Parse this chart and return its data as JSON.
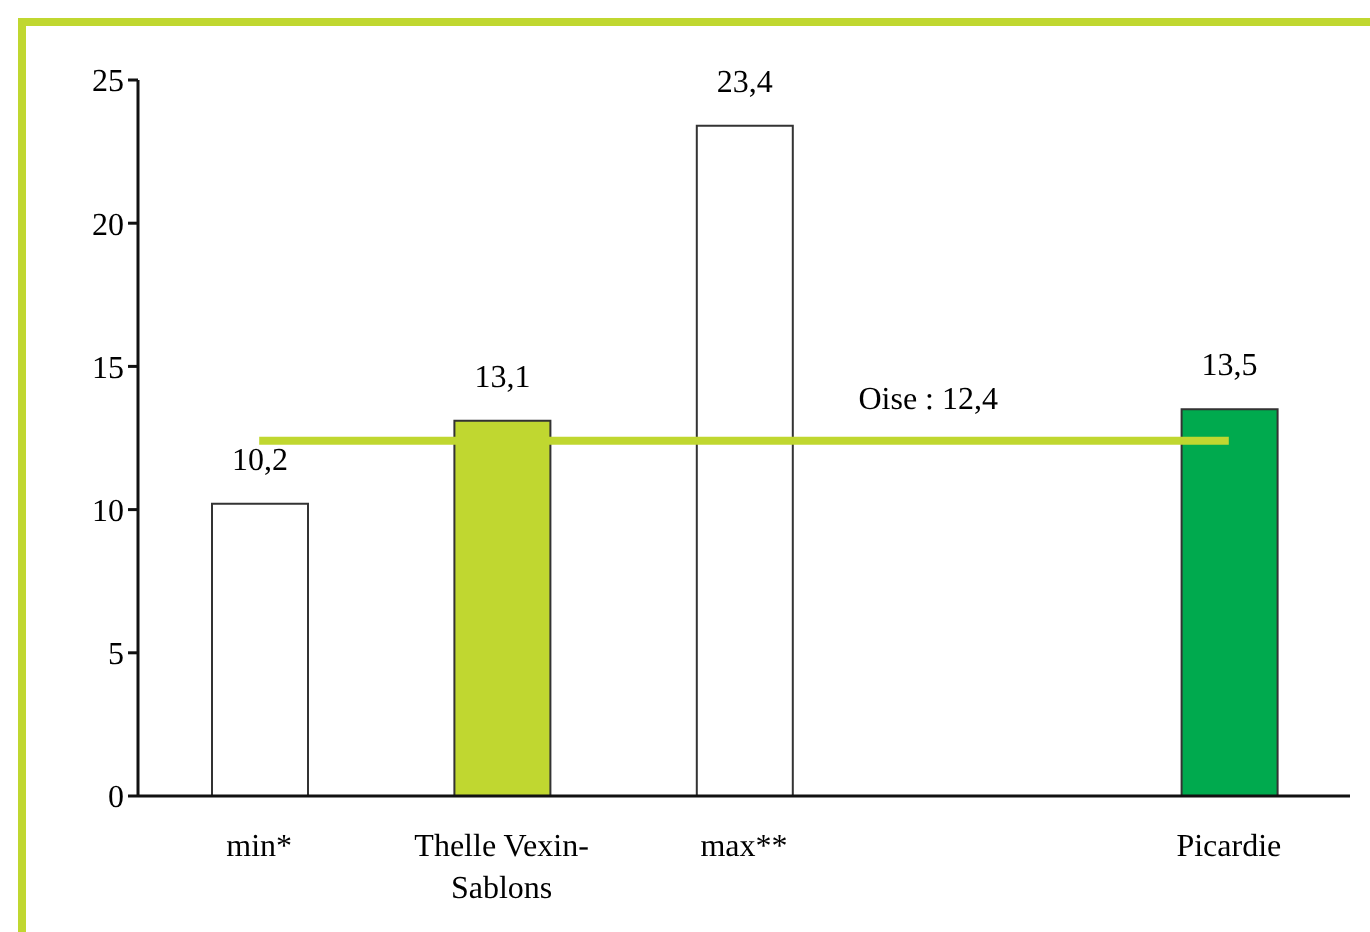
{
  "chart_data": {
    "type": "bar",
    "categories": [
      "min*",
      "Thelle Vexin-Sablons",
      "max**",
      null,
      "Picardie"
    ],
    "values": [
      10.2,
      13.1,
      23.4,
      null,
      13.5
    ],
    "colors": [
      "#ffffff",
      "#c0d730",
      "#ffffff",
      "#ffffff",
      "#00aa4e"
    ],
    "value_labels": [
      "10,2",
      "13,1",
      "23,4",
      null,
      "13,5"
    ],
    "ylim": [
      0,
      25
    ],
    "yticks": [
      0,
      5,
      10,
      15,
      20,
      25
    ],
    "ref_lines": [
      {
        "axis": "y",
        "value": 12.4,
        "label": "Oise : 12,4",
        "color": "#c0d730"
      }
    ]
  }
}
